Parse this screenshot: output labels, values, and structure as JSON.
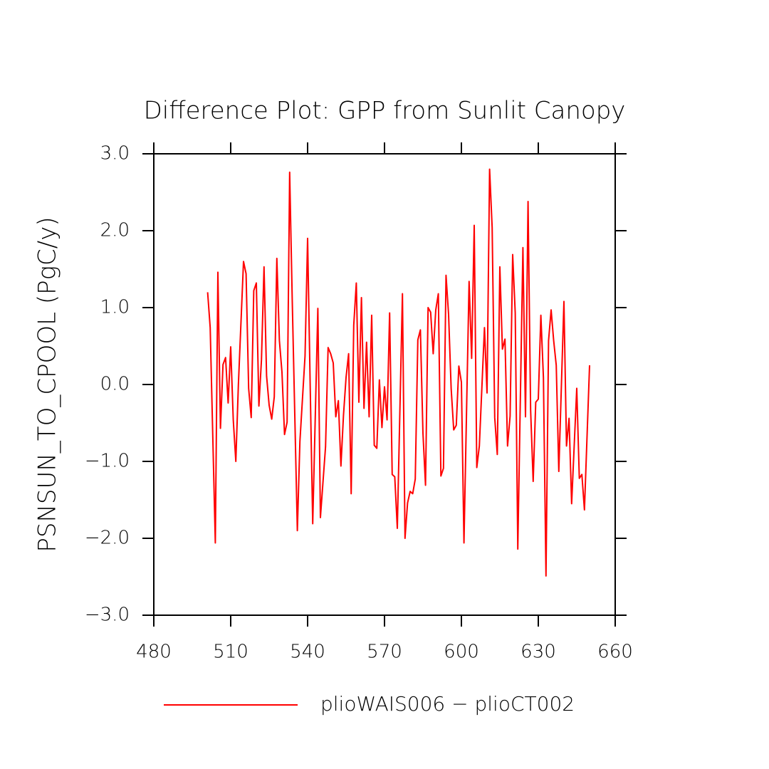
{
  "chart_data": {
    "type": "line",
    "title": "Difference Plot: GPP from Sunlit Canopy",
    "y_label": "PSNSUN_TO_CPOOL  (PgC/y)",
    "xlim": [
      480,
      660
    ],
    "xticks": [
      480,
      510,
      540,
      570,
      600,
      630,
      660
    ],
    "ylim": [
      -3,
      3
    ],
    "yticks": [
      {
        "value": -3,
        "label": "−3.0"
      },
      {
        "value": -2,
        "label": "−2.0"
      },
      {
        "value": -1,
        "label": "−1.0"
      },
      {
        "value": 0,
        "label": "0.0"
      },
      {
        "value": 1,
        "label": "1.0"
      },
      {
        "value": 2,
        "label": "2.0"
      },
      {
        "value": 3,
        "label": "3.0"
      }
    ],
    "x": [
      501,
      502,
      504,
      505,
      506,
      507,
      508,
      509,
      510,
      511,
      512,
      513,
      515,
      516,
      517,
      518,
      519,
      520,
      521,
      522,
      523,
      524,
      525,
      526,
      527,
      528,
      529,
      530,
      531,
      532,
      533,
      534,
      536,
      537,
      539,
      540,
      541,
      542,
      544,
      545,
      547,
      548,
      549,
      550,
      551,
      552,
      553,
      554,
      555,
      556,
      557,
      558,
      559,
      560,
      561,
      562,
      563,
      564,
      565,
      566,
      567,
      568,
      569,
      570,
      571,
      572,
      573,
      574,
      575,
      577,
      578,
      579,
      580,
      581,
      582,
      583,
      584,
      585,
      586,
      587,
      588,
      589,
      590,
      591,
      592,
      593,
      594,
      595,
      596,
      597,
      598,
      599,
      600,
      601,
      603,
      604,
      605,
      606,
      607,
      609,
      610,
      611,
      612,
      613,
      614,
      615,
      616,
      617,
      618,
      619,
      620,
      621,
      622,
      624,
      625,
      626,
      627,
      628,
      629,
      630,
      631,
      632,
      633,
      634,
      635,
      636,
      637,
      638,
      640,
      641,
      642,
      643,
      645,
      646,
      647,
      648,
      650
    ],
    "series": [
      {
        "name": "plioWAIS006 − plioCT002",
        "color": "#ff0000",
        "values": [
          1.2,
          0.74,
          -2.06,
          1.46,
          -0.57,
          0.26,
          0.35,
          -0.24,
          0.49,
          -0.46,
          -1.0,
          0,
          1.6,
          1.44,
          -0.05,
          -0.43,
          1.22,
          1.32,
          -0.28,
          0.32,
          1.53,
          0.11,
          -0.27,
          -0.45,
          -0.16,
          1.64,
          0.57,
          0.16,
          -0.65,
          -0.49,
          2.76,
          1.11,
          -1.9,
          -0.74,
          0.37,
          1.9,
          0,
          -1.81,
          0.99,
          -1.73,
          -0.81,
          0.48,
          0.4,
          0.28,
          -0.42,
          -0.21,
          -1.06,
          -0.4,
          0.09,
          0.4,
          -1.42,
          0.77,
          1.32,
          -0.23,
          1.13,
          -0.31,
          0.55,
          -0.42,
          0.9,
          -0.79,
          -0.83,
          0.06,
          -0.56,
          -0.03,
          -0.46,
          0.93,
          -1.17,
          -1.2,
          -1.87,
          1.18,
          -2.0,
          -1.54,
          -1.39,
          -1.42,
          -1.23,
          0.58,
          0.71,
          -0.63,
          -1.31,
          1.0,
          0.94,
          0.4,
          0.97,
          1.18,
          -1.19,
          -1.09,
          1.42,
          0.91,
          -0.05,
          -0.59,
          -0.53,
          0.24,
          0.03,
          -2.06,
          1.34,
          0.34,
          2.07,
          -1.08,
          -0.8,
          0.74,
          -0.11,
          2.8,
          2.04,
          -0.43,
          -0.91,
          1.53,
          0.46,
          0.59,
          -0.8,
          -0.41,
          1.69,
          0.93,
          -2.14,
          1.78,
          -0.42,
          2.38,
          -0.33,
          -1.26,
          -0.23,
          -0.19,
          0.9,
          0.09,
          -2.49,
          0.57,
          0.97,
          0.57,
          0.25,
          -1.13,
          1.08,
          -0.8,
          -0.44,
          -1.55,
          -0.05,
          -1.22,
          -1.17,
          -1.63,
          0.25
        ]
      }
    ],
    "legend": "bottom"
  }
}
